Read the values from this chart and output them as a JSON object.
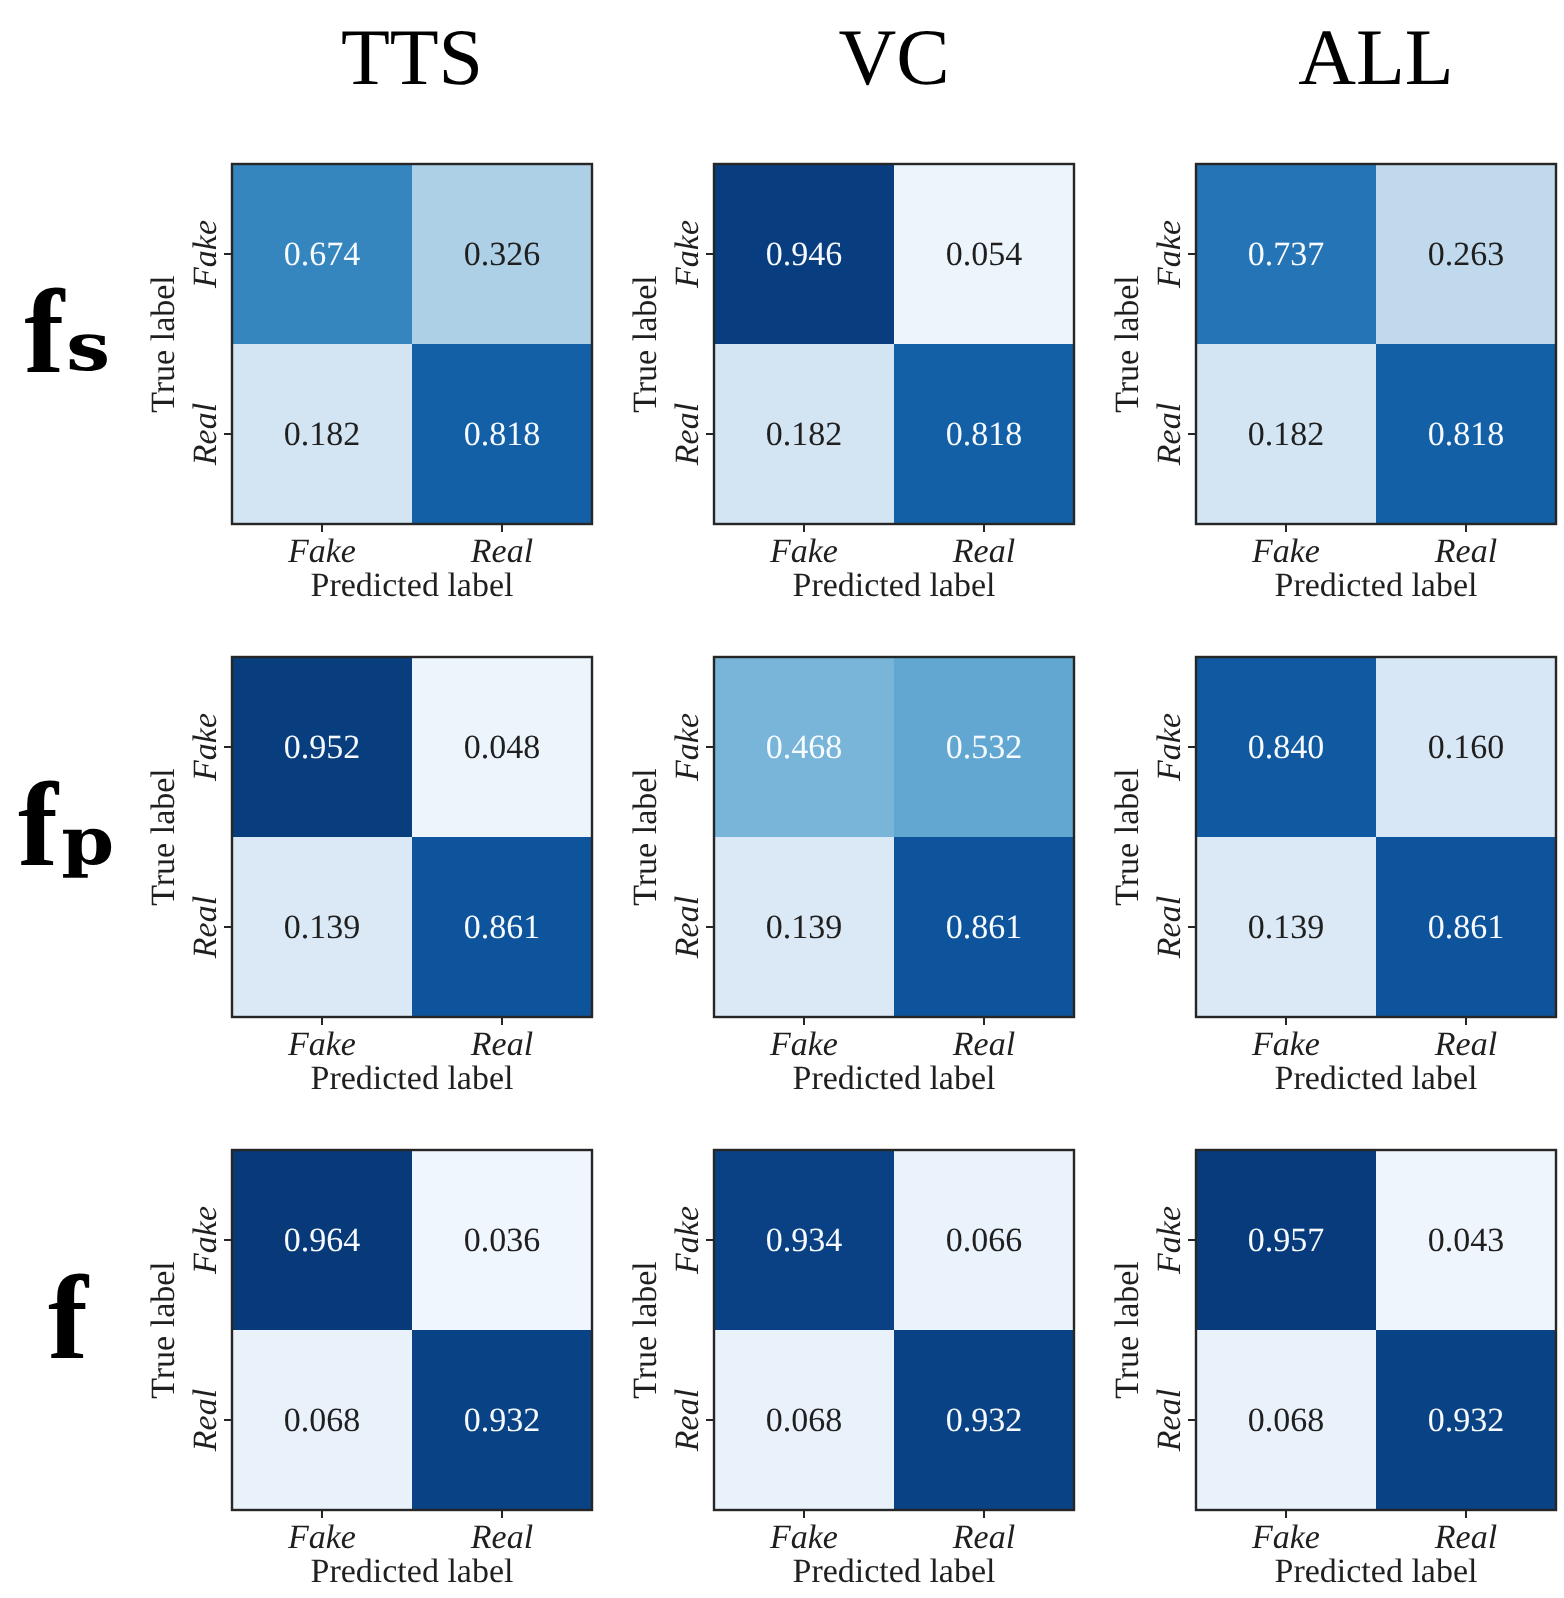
{
  "chart_data": [
    {
      "type": "heatmap",
      "title": "TTS",
      "annotations": [
        "fₛ"
      ],
      "xlabel": "Predicted label",
      "ylabel": "True label",
      "categories": [
        "Fake",
        "Real"
      ],
      "y_categories": [
        "Fake",
        "Real"
      ],
      "cells": [
        [
          0.674,
          0.326
        ],
        [
          0.182,
          0.818
        ]
      ],
      "data_labels": true
    },
    {
      "type": "heatmap",
      "title": "VC",
      "xlabel": "Predicted label",
      "ylabel": "True label",
      "categories": [
        "Fake",
        "Real"
      ],
      "y_categories": [
        "Fake",
        "Real"
      ],
      "cells": [
        [
          0.946,
          0.054
        ],
        [
          0.182,
          0.818
        ]
      ],
      "data_labels": true
    },
    {
      "type": "heatmap",
      "title": "ALL",
      "xlabel": "Predicted label",
      "ylabel": "True label",
      "categories": [
        "Fake",
        "Real"
      ],
      "y_categories": [
        "Fake",
        "Real"
      ],
      "cells": [
        [
          0.737,
          0.263
        ],
        [
          0.182,
          0.818
        ]
      ],
      "data_labels": true
    },
    {
      "type": "heatmap",
      "annotations": [
        "fₚ"
      ],
      "xlabel": "Predicted label",
      "ylabel": "True label",
      "categories": [
        "Fake",
        "Real"
      ],
      "y_categories": [
        "Fake",
        "Real"
      ],
      "cells": [
        [
          0.952,
          0.048
        ],
        [
          0.139,
          0.861
        ]
      ],
      "data_labels": true
    },
    {
      "type": "heatmap",
      "xlabel": "Predicted label",
      "ylabel": "True label",
      "categories": [
        "Fake",
        "Real"
      ],
      "y_categories": [
        "Fake",
        "Real"
      ],
      "cells": [
        [
          0.468,
          0.532
        ],
        [
          0.139,
          0.861
        ]
      ],
      "data_labels": true
    },
    {
      "type": "heatmap",
      "xlabel": "Predicted label",
      "ylabel": "True label",
      "categories": [
        "Fake",
        "Real"
      ],
      "y_categories": [
        "Fake",
        "Real"
      ],
      "cells": [
        [
          0.84,
          0.16
        ],
        [
          0.139,
          0.861
        ]
      ],
      "cell_labels": [
        [
          "0.840",
          "0.160"
        ],
        [
          "0.139",
          "0.861"
        ]
      ],
      "data_labels": true
    },
    {
      "type": "heatmap",
      "annotations": [
        "f"
      ],
      "xlabel": "Predicted label",
      "ylabel": "True label",
      "categories": [
        "Fake",
        "Real"
      ],
      "y_categories": [
        "Fake",
        "Real"
      ],
      "cells": [
        [
          0.964,
          0.036
        ],
        [
          0.068,
          0.932
        ]
      ],
      "data_labels": true
    },
    {
      "type": "heatmap",
      "xlabel": "Predicted label",
      "ylabel": "True label",
      "categories": [
        "Fake",
        "Real"
      ],
      "y_categories": [
        "Fake",
        "Real"
      ],
      "cells": [
        [
          0.934,
          0.066
        ],
        [
          0.068,
          0.932
        ]
      ],
      "data_labels": true
    },
    {
      "type": "heatmap",
      "xlabel": "Predicted label",
      "ylabel": "True label",
      "categories": [
        "Fake",
        "Real"
      ],
      "y_categories": [
        "Fake",
        "Real"
      ],
      "cells": [
        [
          0.957,
          0.043
        ],
        [
          0.068,
          0.932
        ]
      ],
      "data_labels": true
    }
  ]
}
